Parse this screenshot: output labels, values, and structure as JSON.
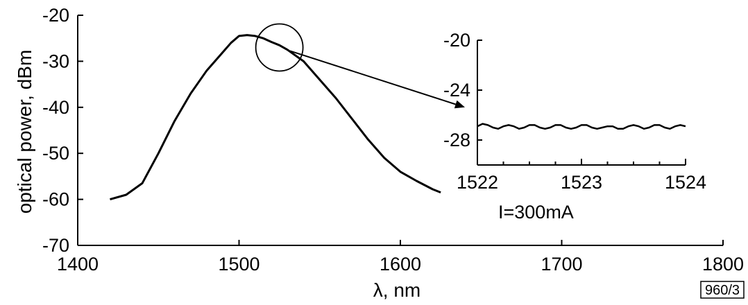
{
  "chart_data": [
    {
      "type": "line",
      "title": "",
      "xlabel": "λ, nm",
      "ylabel": "optical power, dBm",
      "xlim": [
        1400,
        1800
      ],
      "ylim": [
        -70,
        -20
      ],
      "x_ticks": [
        1400,
        1500,
        1600,
        1700,
        1800
      ],
      "y_ticks": [
        -70,
        -60,
        -50,
        -40,
        -30,
        -20
      ],
      "x_tick_labels": [
        "1400",
        "1500",
        "1600",
        "1700",
        "1800"
      ],
      "y_tick_labels": [
        "-70",
        "-60",
        "-50",
        "-40",
        "-30",
        "-20"
      ],
      "grid": false,
      "series": [
        {
          "x": [
            1420,
            1430,
            1440,
            1450,
            1460,
            1470,
            1480,
            1490,
            1495,
            1500,
            1505,
            1510,
            1515,
            1520,
            1525,
            1530,
            1540,
            1550,
            1560,
            1570,
            1580,
            1590,
            1600,
            1610,
            1620,
            1625
          ],
          "y": [
            -60,
            -59,
            -56.5,
            -50,
            -43,
            -37,
            -32,
            -28,
            -26,
            -24.5,
            -24.3,
            -24.5,
            -25,
            -25.8,
            -26.5,
            -27.5,
            -30,
            -34,
            -38,
            -42.5,
            -47,
            -51,
            -54,
            -56,
            -57.8,
            -58.5
          ]
        }
      ],
      "annotations": {
        "circle_center": [
          1525,
          -27
        ],
        "arrow_from": [
          1525,
          -27
        ],
        "arrow_to": [
          1640,
          -40
        ]
      },
      "figure_id": "960/3"
    },
    {
      "type": "line",
      "title": "",
      "xlabel": "",
      "ylabel": "",
      "xlim": [
        1522,
        1524
      ],
      "ylim": [
        -30,
        -20
      ],
      "x_ticks": [
        1522,
        1523,
        1524
      ],
      "y_ticks": [
        -28,
        -24,
        -20
      ],
      "x_tick_labels": [
        "1522",
        "1523",
        "1524"
      ],
      "y_tick_labels": [
        "-28",
        "-24",
        "-20"
      ],
      "grid": false,
      "annotation": "I=300mA",
      "series": [
        {
          "x": [
            1522.0,
            1522.05,
            1522.1,
            1522.15,
            1522.2,
            1522.25,
            1522.3,
            1522.35,
            1522.4,
            1522.45,
            1522.5,
            1522.55,
            1522.6,
            1522.65,
            1522.7,
            1522.75,
            1522.8,
            1522.85,
            1522.9,
            1522.95,
            1523.0,
            1523.05,
            1523.1,
            1523.15,
            1523.2,
            1523.25,
            1523.3,
            1523.35,
            1523.4,
            1523.45,
            1523.5,
            1523.55,
            1523.6,
            1523.65,
            1523.7,
            1523.75,
            1523.8,
            1523.85,
            1523.9,
            1523.95,
            1524.0
          ],
          "y": [
            -26.9,
            -26.7,
            -26.8,
            -27.0,
            -27.1,
            -26.9,
            -26.8,
            -26.9,
            -27.1,
            -27.0,
            -26.8,
            -26.8,
            -27.0,
            -27.1,
            -27.0,
            -26.8,
            -26.8,
            -27.0,
            -27.1,
            -27.0,
            -26.8,
            -26.8,
            -27.0,
            -27.1,
            -27.0,
            -26.9,
            -26.9,
            -27.1,
            -27.1,
            -26.9,
            -26.8,
            -26.9,
            -27.1,
            -27.0,
            -26.8,
            -26.8,
            -27.0,
            -27.1,
            -26.9,
            -26.8,
            -26.9
          ]
        }
      ]
    }
  ]
}
